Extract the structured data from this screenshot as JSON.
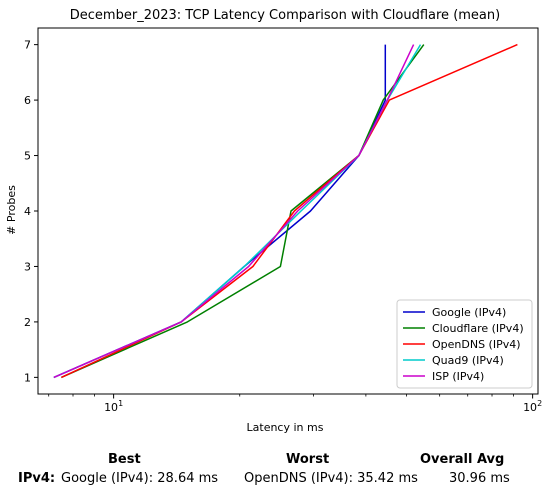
{
  "chart_data": {
    "type": "line",
    "title": "December_2023: TCP Latency Comparison with Cloudflare (mean)",
    "xlabel": "Latency in ms",
    "ylabel": "# Probes",
    "xscale": "log",
    "xlim": [
      6.6,
      103
    ],
    "ylim": [
      0.7,
      7.3
    ],
    "x_ticks": [
      {
        "value": 10,
        "label": "10^1"
      },
      {
        "value": 100,
        "label": "10^2"
      }
    ],
    "y_ticks": [
      1,
      2,
      3,
      4,
      5,
      6,
      7
    ],
    "grid": false,
    "legend": "lower-right",
    "series": [
      {
        "name": "Google (IPv4)",
        "color": "#0000cc",
        "points": [
          [
            7.2,
            1
          ],
          [
            14.5,
            2
          ],
          [
            20.5,
            3
          ],
          [
            29.5,
            4
          ],
          [
            38.5,
            5
          ],
          [
            44.5,
            6
          ],
          [
            44.5,
            7
          ]
        ]
      },
      {
        "name": "Cloudflare (IPv4)",
        "color": "#008000",
        "points": [
          [
            7.5,
            1
          ],
          [
            15,
            2
          ],
          [
            25,
            3
          ],
          [
            26.5,
            4
          ],
          [
            38.5,
            5
          ],
          [
            44,
            6
          ],
          [
            55,
            7
          ]
        ]
      },
      {
        "name": "OpenDNS (IPv4)",
        "color": "#ff0000",
        "points": [
          [
            7.5,
            1
          ],
          [
            14.5,
            2
          ],
          [
            21.5,
            3
          ],
          [
            27,
            4
          ],
          [
            38.5,
            5
          ],
          [
            45.5,
            6
          ],
          [
            92,
            7
          ]
        ]
      },
      {
        "name": "Quad9 (IPv4)",
        "color": "#00cccc",
        "points": [
          [
            7.2,
            1
          ],
          [
            14.5,
            2
          ],
          [
            20.5,
            3
          ],
          [
            28,
            4
          ],
          [
            38.5,
            5
          ],
          [
            45,
            6
          ],
          [
            54,
            7
          ]
        ]
      },
      {
        "name": "ISP (IPv4)",
        "color": "#cc00cc",
        "points": [
          [
            7.2,
            1
          ],
          [
            14.5,
            2
          ],
          [
            21,
            3
          ],
          [
            27.5,
            4
          ],
          [
            38.5,
            5
          ],
          [
            45,
            6
          ],
          [
            52,
            7
          ]
        ]
      }
    ]
  },
  "summary": {
    "best_label": "Best",
    "worst_label": "Worst",
    "avg_label": "Overall Avg",
    "row_label": "IPv4:",
    "best_value": "Google (IPv4): 28.64 ms",
    "worst_value": "OpenDNS (IPv4): 35.42 ms",
    "avg_value": "30.96 ms"
  }
}
